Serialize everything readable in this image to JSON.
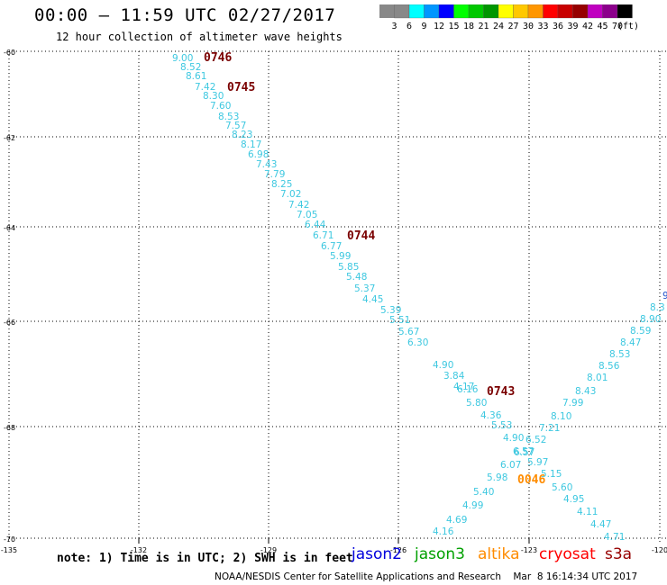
{
  "header": {
    "title": "00:00 – 11:59 UTC 02/27/2017",
    "subtitle": "12 hour collection of altimeter wave heights"
  },
  "legend": {
    "unit_label": "(ft)",
    "bins": [
      {
        "label": "3",
        "color": "#888888"
      },
      {
        "label": "6",
        "color": "#00ffff"
      },
      {
        "label": "9",
        "color": "#0096ff"
      },
      {
        "label": "12",
        "color": "#0000ff"
      },
      {
        "label": "15",
        "color": "#00ff00"
      },
      {
        "label": "18",
        "color": "#00c800"
      },
      {
        "label": "21",
        "color": "#009600"
      },
      {
        "label": "24",
        "color": "#ffff00"
      },
      {
        "label": "27",
        "color": "#ffc800"
      },
      {
        "label": "30",
        "color": "#ff9600"
      },
      {
        "label": "33",
        "color": "#ff0000"
      },
      {
        "label": "36",
        "color": "#c80000"
      },
      {
        "label": "39",
        "color": "#960000"
      },
      {
        "label": "42",
        "color": "#c000c0"
      },
      {
        "label": "45",
        "color": "#8c008c"
      },
      {
        "label": "70",
        "color": "#000000"
      }
    ],
    "leading_bin_color": "#888888"
  },
  "map": {
    "lat_labels": [
      "-60",
      "-62",
      "-64",
      "-66",
      "-68",
      "-70"
    ],
    "lon_labels": [
      "-135",
      "-132",
      "-129",
      "-126",
      "-123",
      "-120"
    ]
  },
  "tracks": {
    "track1": {
      "color": "#3ec8e0",
      "values": [
        "9.00",
        "8.52",
        "8.61",
        "7.42",
        "8.30",
        "7.60",
        "8.53",
        "7.57",
        "8.23",
        "8.17",
        "6.98",
        "7.43",
        "7.79",
        "8.25",
        "7.02",
        "7.42",
        "7.05",
        "6.44",
        "6.71",
        "6.77",
        "5.99",
        "5.85",
        "5.48",
        "5.37",
        "4.45",
        "5.39",
        "5.51",
        "5.67",
        "6.30",
        "4.90",
        "3.84",
        "4.17",
        "6.16",
        "5.80",
        "4.36",
        "5.53",
        "4.90",
        "6.57",
        "6.07",
        "5.98",
        "5.40",
        "4.99",
        "4.69",
        "4.16"
      ]
    },
    "track2": {
      "color": "#3ec8e0",
      "values": [
        "8.3",
        "8.90",
        "8.59",
        "8.47",
        "8.53",
        "8.56",
        "8.01",
        "8.43",
        "7.99",
        "8.10",
        "7.21",
        "6.52",
        "6.57",
        "5.97",
        "5.15",
        "5.60",
        "4.95",
        "4.11",
        "4.47",
        "4.71"
      ]
    },
    "track2_dark_value": "9",
    "track2_dark_color": "#1e50c8",
    "time_color": "#7a0000",
    "time_labels": [
      "0746",
      "0745",
      "0744",
      "0743"
    ],
    "orange_time_label": "0046",
    "orange_color": "#ff8c00"
  },
  "footer": {
    "note": "note: 1) Time is in UTC; 2) SWH is in feet",
    "satellites": [
      {
        "name": "jason2",
        "color": "#0000dc"
      },
      {
        "name": "jason3",
        "color": "#00a000"
      },
      {
        "name": "altika",
        "color": "#ff8c00"
      },
      {
        "name": "cryosat",
        "color": "#ff0000"
      },
      {
        "name": "s3a",
        "color": "#960000"
      }
    ],
    "credit": "NOAA/NESDIS Center for Satellite Applications and Research    Mar  8 16:14:34 UTC 2017"
  }
}
